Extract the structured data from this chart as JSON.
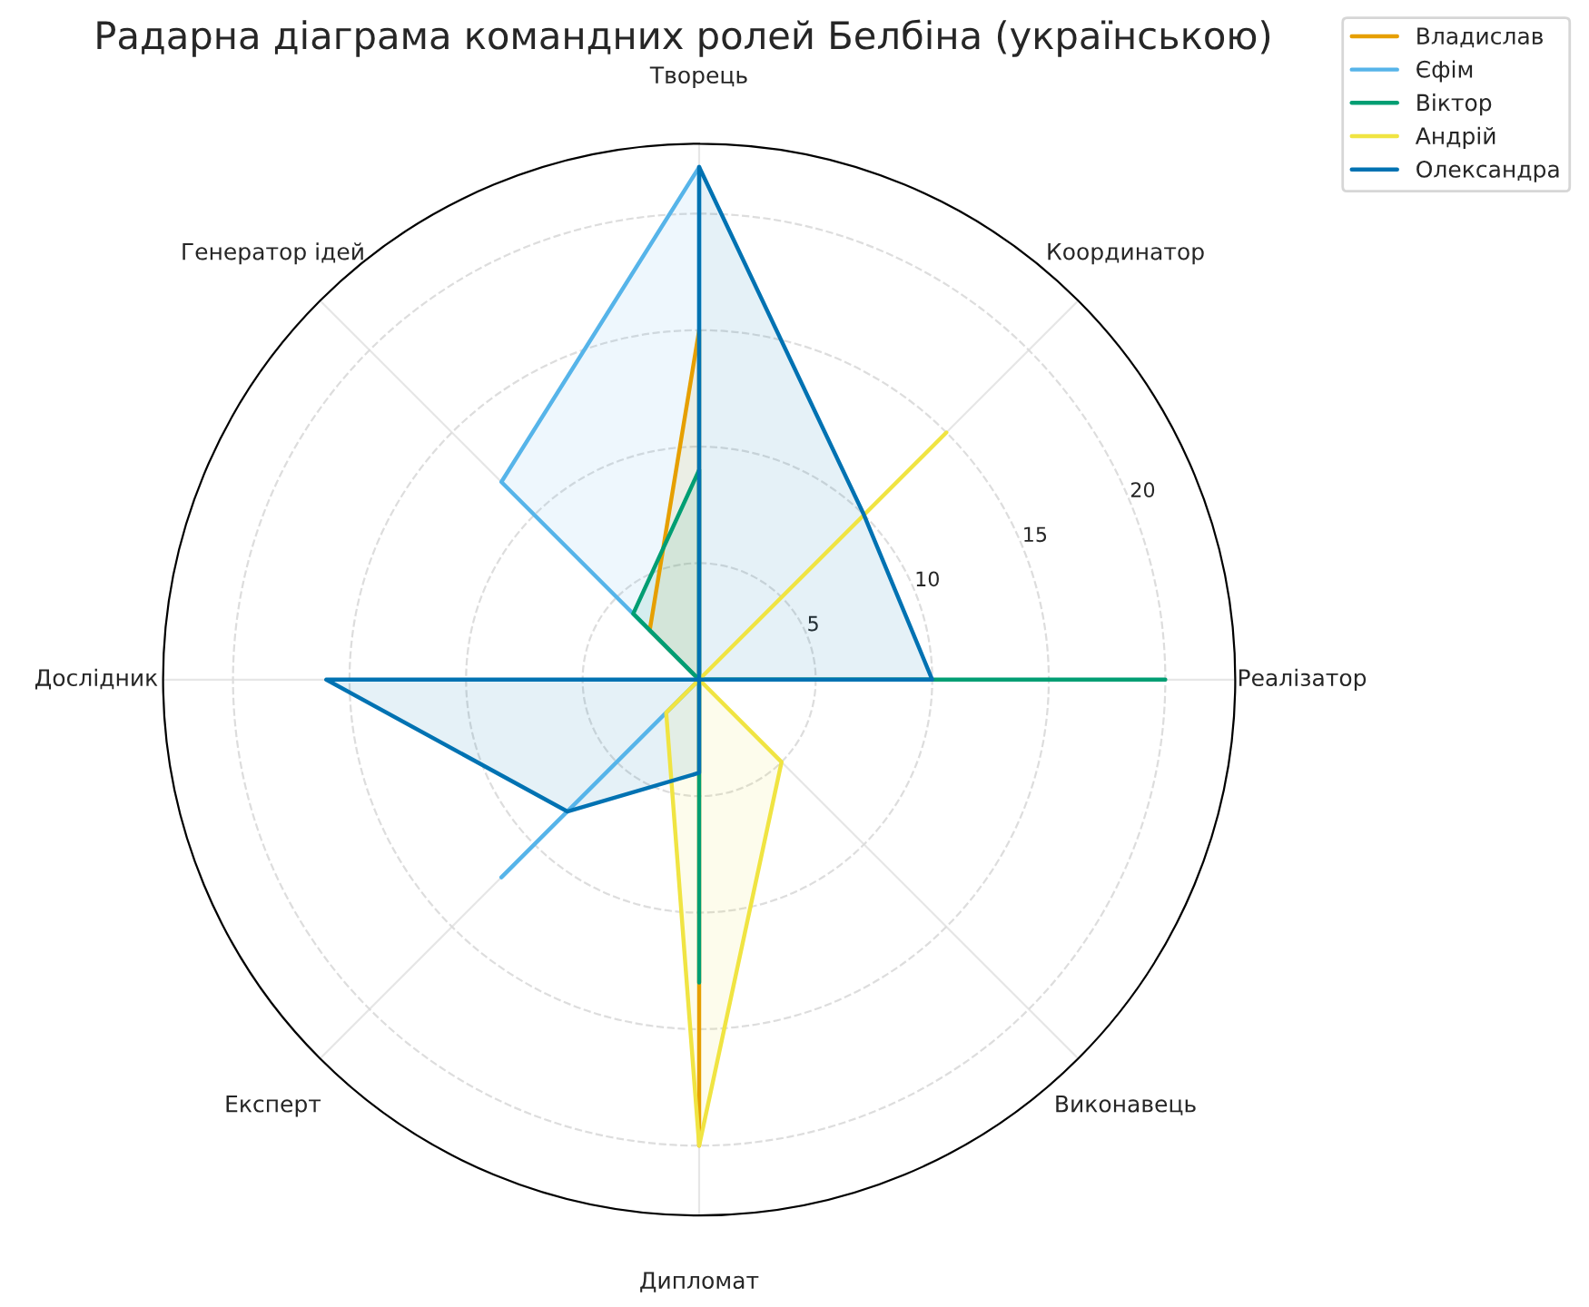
{
  "chart_data": {
    "type": "radar",
    "title": "Радарна діаграма командних ролей Белбіна (українською)",
    "categories": [
      "Творець",
      "Координатор",
      "Реалізатор",
      "Виконавець",
      "Дипломат",
      "Експерт",
      "Дослідник",
      "Генератор ідей"
    ],
    "series": [
      {
        "name": "Владислав",
        "color": "#e69f00",
        "values": [
          15,
          0,
          0,
          0,
          20,
          0,
          0,
          3
        ]
      },
      {
        "name": "Єфім",
        "color": "#56b4e9",
        "values": [
          22,
          0,
          0,
          0,
          0,
          12,
          0,
          12
        ]
      },
      {
        "name": "Віктор",
        "color": "#009e73",
        "values": [
          9,
          0,
          20,
          0,
          13,
          0,
          0,
          4
        ]
      },
      {
        "name": "Андрій",
        "color": "#f0e442",
        "values": [
          0,
          15,
          0,
          5,
          20,
          2,
          0,
          0
        ]
      },
      {
        "name": "Олександра",
        "color": "#0072b2",
        "values": [
          22,
          10,
          10,
          0,
          4,
          8,
          16,
          0
        ]
      }
    ],
    "ylim": [
      0,
      23
    ],
    "yticks": [
      5,
      10,
      15,
      20
    ],
    "grid": true,
    "legend": "top right"
  }
}
